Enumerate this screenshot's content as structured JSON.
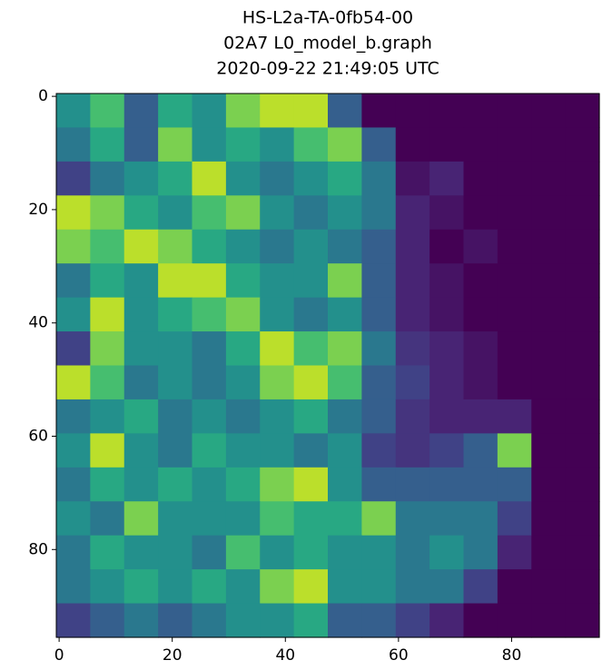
{
  "chart_data": {
    "type": "heatmap",
    "title": [
      "HS-L2a-TA-0fb54-00",
      "02A7 L0_model_b.graph",
      "2020-09-22 21:49:05 UTC"
    ],
    "colormap": "viridis",
    "xlim": [
      -0.5,
      95.5
    ],
    "ylim": [
      95.5,
      -0.5
    ],
    "xticks": [
      0,
      20,
      40,
      60,
      80
    ],
    "yticks": [
      0,
      20,
      40,
      60,
      80
    ],
    "z": [
      [
        0.5,
        0.7,
        0.3,
        0.6,
        0.5,
        0.8,
        0.9,
        0.9,
        0.3,
        0,
        0,
        0,
        0,
        0,
        0,
        0
      ],
      [
        0.4,
        0.6,
        0.3,
        0.8,
        0.5,
        0.6,
        0.5,
        0.7,
        0.8,
        0.3,
        0,
        0,
        0,
        0,
        0,
        0
      ],
      [
        0.2,
        0.4,
        0.5,
        0.6,
        0.9,
        0.5,
        0.4,
        0.5,
        0.6,
        0.4,
        0.05,
        0.1,
        0,
        0,
        0,
        0
      ],
      [
        0.9,
        0.8,
        0.6,
        0.5,
        0.7,
        0.8,
        0.5,
        0.4,
        0.5,
        0.4,
        0.1,
        0.05,
        0,
        0,
        0,
        0
      ],
      [
        0.8,
        0.7,
        0.9,
        0.8,
        0.6,
        0.5,
        0.4,
        0.5,
        0.4,
        0.3,
        0.1,
        0,
        0.05,
        0,
        0,
        0
      ],
      [
        0.4,
        0.6,
        0.5,
        0.9,
        0.9,
        0.6,
        0.5,
        0.5,
        0.8,
        0.3,
        0.1,
        0.05,
        0,
        0,
        0,
        0
      ],
      [
        0.5,
        0.9,
        0.5,
        0.6,
        0.7,
        0.8,
        0.5,
        0.4,
        0.5,
        0.3,
        0.1,
        0.05,
        0,
        0,
        0,
        0
      ],
      [
        0.2,
        0.8,
        0.5,
        0.5,
        0.4,
        0.6,
        0.9,
        0.7,
        0.8,
        0.4,
        0.15,
        0.1,
        0.05,
        0,
        0,
        0
      ],
      [
        0.9,
        0.7,
        0.4,
        0.5,
        0.4,
        0.5,
        0.8,
        0.9,
        0.7,
        0.3,
        0.2,
        0.1,
        0.05,
        0,
        0,
        0
      ],
      [
        0.4,
        0.5,
        0.6,
        0.4,
        0.5,
        0.4,
        0.5,
        0.6,
        0.4,
        0.3,
        0.15,
        0.1,
        0.1,
        0.1,
        0,
        0
      ],
      [
        0.5,
        0.9,
        0.5,
        0.4,
        0.6,
        0.5,
        0.5,
        0.4,
        0.5,
        0.2,
        0.15,
        0.2,
        0.3,
        0.8,
        0,
        0
      ],
      [
        0.4,
        0.6,
        0.5,
        0.6,
        0.5,
        0.6,
        0.8,
        0.9,
        0.5,
        0.3,
        0.3,
        0.3,
        0.3,
        0.3,
        0,
        0
      ],
      [
        0.5,
        0.4,
        0.8,
        0.5,
        0.5,
        0.5,
        0.7,
        0.6,
        0.6,
        0.8,
        0.4,
        0.4,
        0.4,
        0.2,
        0,
        0
      ],
      [
        0.4,
        0.6,
        0.5,
        0.5,
        0.4,
        0.7,
        0.5,
        0.6,
        0.5,
        0.5,
        0.4,
        0.5,
        0.4,
        0.1,
        0,
        0
      ],
      [
        0.4,
        0.5,
        0.6,
        0.5,
        0.6,
        0.5,
        0.8,
        0.9,
        0.5,
        0.5,
        0.4,
        0.4,
        0.2,
        0,
        0,
        0
      ],
      [
        0.2,
        0.3,
        0.4,
        0.3,
        0.4,
        0.5,
        0.5,
        0.6,
        0.3,
        0.3,
        0.2,
        0.1,
        0,
        0,
        0,
        0
      ]
    ]
  }
}
